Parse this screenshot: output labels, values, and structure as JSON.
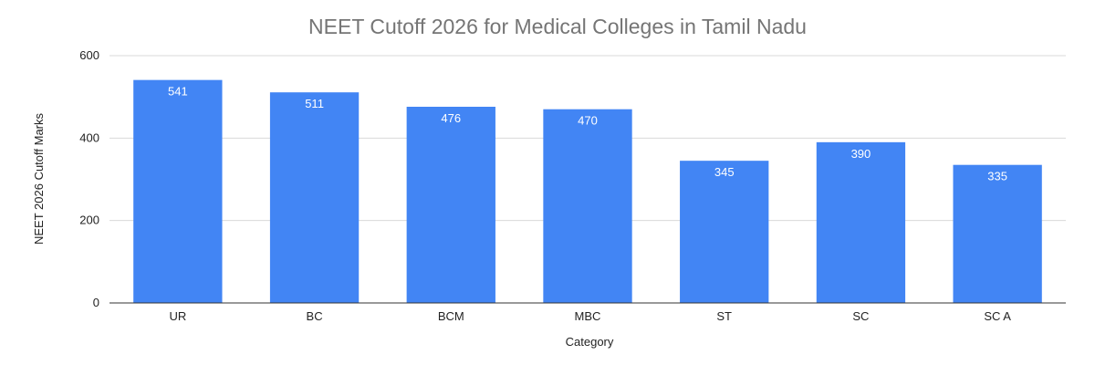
{
  "chart_data": {
    "type": "bar",
    "title": "NEET Cutoff 2026 for Medical Colleges in Tamil Nadu",
    "xlabel": "Category",
    "ylabel": "NEET 2026 Cutoff Marks",
    "categories": [
      "UR",
      "BC",
      "BCM",
      "MBC",
      "ST",
      "SC",
      "SC A"
    ],
    "series": [
      {
        "values": [
          541,
          511,
          476,
          470,
          345,
          390,
          335
        ]
      }
    ],
    "ylim": [
      0,
      600
    ],
    "yticks": [
      0,
      200,
      400,
      600
    ],
    "grid": true,
    "legend": "none",
    "bar_color": "#4285f4",
    "label_color": "#ffffff"
  }
}
